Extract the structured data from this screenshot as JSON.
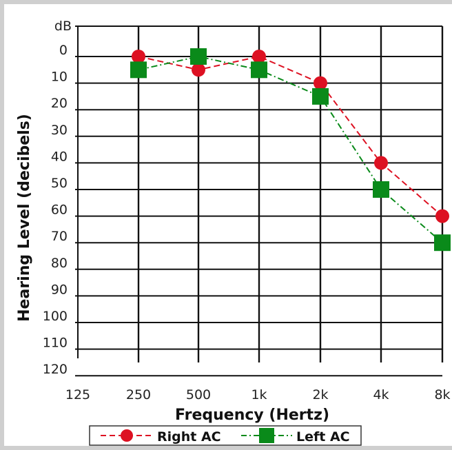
{
  "chart_data": {
    "type": "line",
    "title": "",
    "xlabel": "Frequency (Hertz)",
    "ylabel": "Hearing Level (decibels)",
    "y_unit_label": "dB",
    "x_categories": [
      "125",
      "250",
      "500",
      "1k",
      "2k",
      "4k",
      "8k"
    ],
    "y_ticks": [
      0,
      10,
      20,
      30,
      40,
      50,
      60,
      70,
      80,
      90,
      100,
      110,
      120
    ],
    "ylim": [
      0,
      120
    ],
    "y_inverted": true,
    "grid": true,
    "legend_position": "bottom",
    "series": [
      {
        "name": "Right  AC",
        "marker": "circle",
        "color": "#dd1122",
        "line_style": "dashed",
        "x": [
          "250",
          "500",
          "1k",
          "2k",
          "4k",
          "8k"
        ],
        "values": [
          0,
          5,
          0,
          10,
          40,
          60
        ]
      },
      {
        "name": "Left  AC",
        "marker": "square",
        "color": "#0a8a1a",
        "line_style": "dash-dot",
        "x": [
          "250",
          "500",
          "1k",
          "2k",
          "4k",
          "8k"
        ],
        "values": [
          5,
          0,
          5,
          15,
          50,
          70
        ]
      }
    ]
  }
}
